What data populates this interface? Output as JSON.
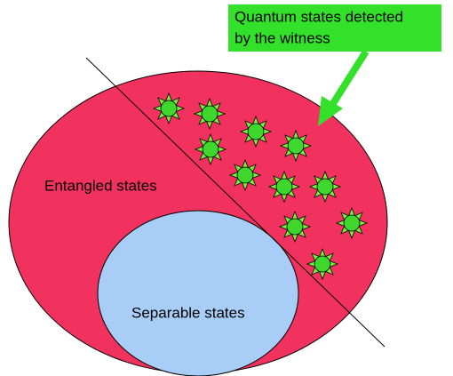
{
  "callout": {
    "lines": [
      "Quantum states detected",
      "by the witness"
    ]
  },
  "regions": {
    "entangled": "Entangled states",
    "separable": "Separable states"
  }
}
